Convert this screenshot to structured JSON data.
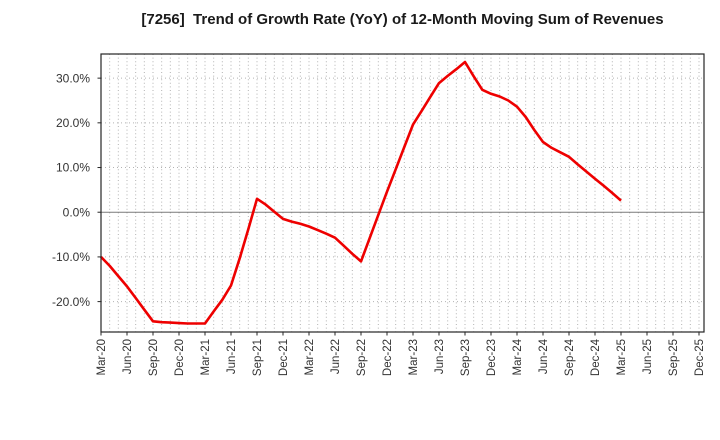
{
  "page": {
    "title": "[7256]  Trend of Growth Rate (YoY) of 12-Month Moving Sum of Revenues"
  },
  "chart_data": {
    "type": "line",
    "title": "[7256]  Trend of Growth Rate (YoY) of 12-Month Moving Sum of Revenues",
    "xlabel": "",
    "ylabel": "",
    "categories": [
      "Mar-20",
      "Apr-20",
      "May-20",
      "Jun-20",
      "Jul-20",
      "Aug-20",
      "Sep-20",
      "Oct-20",
      "Nov-20",
      "Dec-20",
      "Jan-21",
      "Feb-21",
      "Mar-21",
      "Apr-21",
      "May-21",
      "Jun-21",
      "Jul-21",
      "Aug-21",
      "Sep-21",
      "Oct-21",
      "Nov-21",
      "Dec-21",
      "Jan-22",
      "Feb-22",
      "Mar-22",
      "Apr-22",
      "May-22",
      "Jun-22",
      "Jul-22",
      "Aug-22",
      "Sep-22",
      "Oct-22",
      "Nov-22",
      "Dec-22",
      "Jan-23",
      "Feb-23",
      "Mar-23",
      "Apr-23",
      "May-23",
      "Jun-23",
      "Jul-23",
      "Aug-23",
      "Sep-23",
      "Oct-23",
      "Nov-23",
      "Dec-23",
      "Jan-24",
      "Feb-24",
      "Mar-24",
      "Apr-24",
      "May-24",
      "Jun-24",
      "Jul-24",
      "Aug-24",
      "Sep-24",
      "Oct-24",
      "Nov-24",
      "Dec-24",
      "Jan-25",
      "Feb-25",
      "Mar-25"
    ],
    "series": [
      {
        "name": "Growth Rate (YoY) of 12-Month Moving Sum of Revenues",
        "unit": "%",
        "color": "#ee0000",
        "values": [
          -10.0,
          -12.0,
          -14.3,
          -16.6,
          -19.2,
          -21.8,
          -24.4,
          -24.6,
          -24.7,
          -24.8,
          -24.9,
          -24.9,
          -24.9,
          -22.2,
          -19.6,
          -16.4,
          -10.3,
          -3.8,
          3.0,
          1.7,
          0.1,
          -1.5,
          -2.1,
          -2.6,
          -3.2,
          -4.0,
          -4.8,
          -5.7,
          -7.5,
          -9.3,
          -11.0,
          -5.8,
          -0.6,
          4.6,
          9.6,
          14.6,
          19.6,
          22.7,
          25.8,
          28.9,
          30.5,
          32.0,
          33.6,
          30.4,
          27.4,
          26.5,
          25.9,
          25.0,
          23.6,
          21.3,
          18.4,
          15.7,
          14.4,
          13.4,
          12.4,
          10.7,
          9.1,
          7.5,
          5.9,
          4.3,
          2.6
        ]
      }
    ],
    "x_axis": {
      "tick_labels": [
        "Mar-20",
        "Jun-20",
        "Sep-20",
        "Dec-20",
        "Mar-21",
        "Jun-21",
        "Sep-21",
        "Dec-21",
        "Mar-22",
        "Jun-22",
        "Sep-22",
        "Dec-22",
        "Mar-23",
        "Jun-23",
        "Sep-23",
        "Dec-23",
        "Mar-24",
        "Jun-24",
        "Sep-24",
        "Dec-24",
        "Mar-25",
        "Jun-25",
        "Sep-25",
        "Dec-25"
      ],
      "tick_every_months": 3,
      "months_total": 70,
      "label_rotation_deg": -90
    },
    "y_axis": {
      "tick_labels": [
        "30.0%",
        "20.0%",
        "10.0%",
        "0.0%",
        "-10.0%",
        "-20.0%"
      ],
      "tick_values": [
        30,
        20,
        10,
        0,
        -10,
        -20
      ],
      "ylim": [
        -26.8,
        35.4
      ]
    },
    "grid": {
      "vertical": "monthly dotted",
      "horizontal": "every 10% dotted",
      "zero_line": "solid",
      "grid_color": "#b3b3b3",
      "zero_line_color": "#7a7a7a",
      "spine_color": "#262626",
      "tick_label_color": "#333333"
    },
    "legend": {
      "visible": false
    }
  }
}
